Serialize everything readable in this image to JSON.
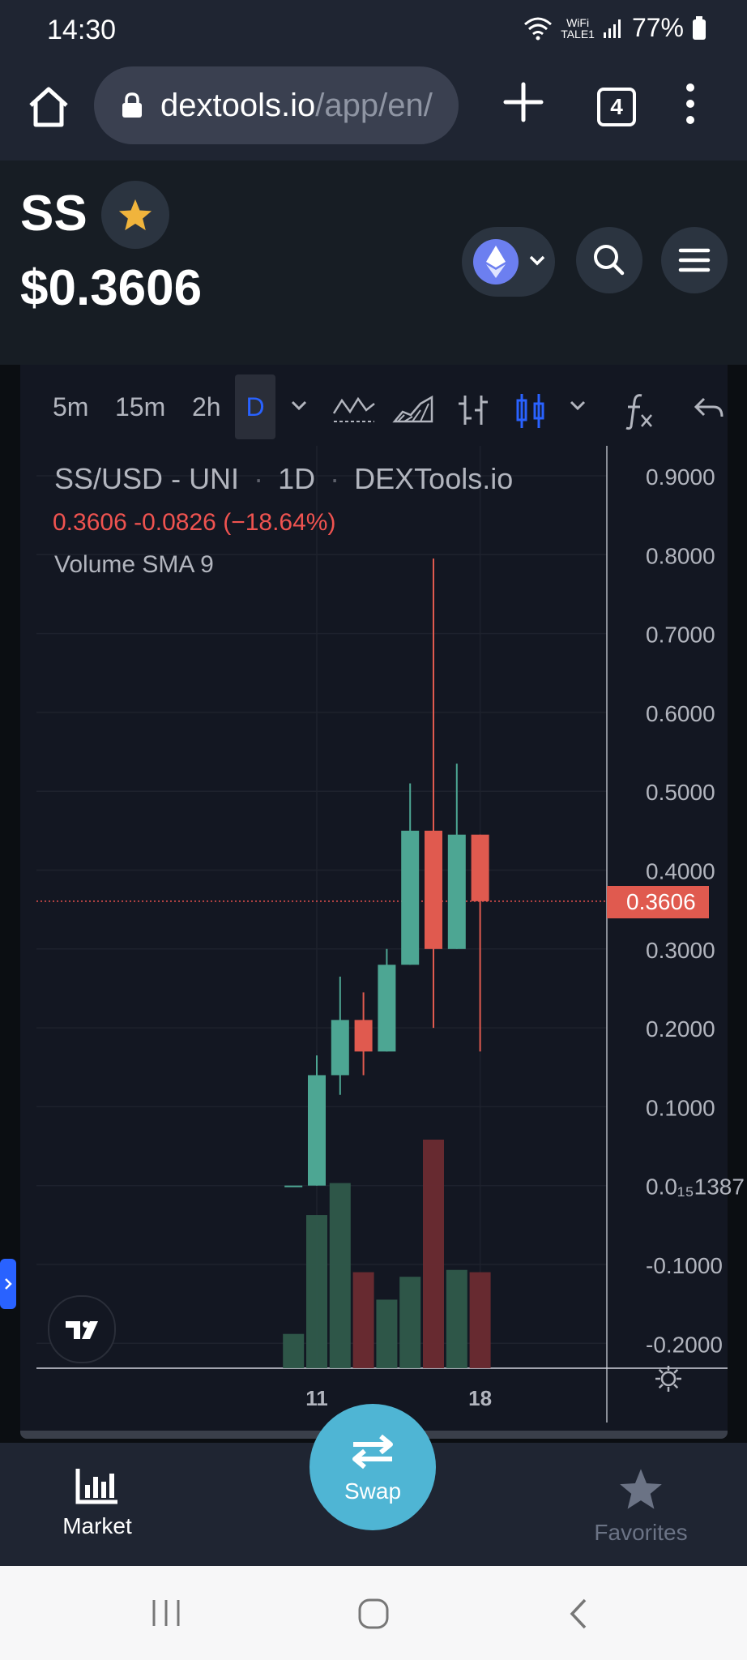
{
  "status_bar": {
    "time": "14:30",
    "wifi_label_top": "WiFi",
    "wifi_label_bottom": "TALE1",
    "battery": "77%"
  },
  "browser": {
    "url_domain": "dextools.io",
    "url_path": "/app/en/",
    "tab_count": "4"
  },
  "token": {
    "symbol": "SS",
    "price": "$0.3606"
  },
  "chart_toolbar": {
    "timeframes": [
      "5m",
      "15m",
      "2h",
      "D"
    ],
    "active_timeframe": "D"
  },
  "chart_legend": {
    "pair": "SS/USD",
    "dex": "UNI",
    "interval": "1D",
    "source": "DEXTools.io",
    "last": "0.3606",
    "change": "-0.0826",
    "change_pct": "(−18.64%)",
    "volume_indicator": "Volume SMA 9"
  },
  "colors": {
    "up": "#4da693",
    "down": "#e05a4f",
    "accent": "#2962ff",
    "swap": "#4fb5d4"
  },
  "chart_data": {
    "type": "candlestick",
    "y_tick_labels": [
      "0.9000",
      "0.8000",
      "0.7000",
      "0.6000",
      "0.5000",
      "0.4000",
      "0.3000",
      "0.2000",
      "0.1000",
      "0.0₁₅1387",
      "-0.1000",
      "-0.2000"
    ],
    "ylim": [
      -0.23,
      0.94
    ],
    "x_tick_labels": [
      {
        "label": "11",
        "day": 11
      },
      {
        "label": "18",
        "day": 18
      }
    ],
    "last_price_label": "0.3606",
    "candles": [
      {
        "day": 10,
        "open": 0.0,
        "high": 0.0,
        "low": 0.0,
        "close": 0.0,
        "volume": 0.15
      },
      {
        "day": 11,
        "open": 0.0,
        "high": 0.165,
        "low": 0.0,
        "close": 0.14,
        "volume": 0.67
      },
      {
        "day": 12,
        "open": 0.14,
        "high": 0.265,
        "low": 0.115,
        "close": 0.21,
        "volume": 0.81
      },
      {
        "day": 13,
        "open": 0.21,
        "high": 0.245,
        "low": 0.14,
        "close": 0.17,
        "volume": 0.42
      },
      {
        "day": 14,
        "open": 0.17,
        "high": 0.3,
        "low": 0.17,
        "close": 0.28,
        "volume": 0.3
      },
      {
        "day": 15,
        "open": 0.28,
        "high": 0.51,
        "low": 0.28,
        "close": 0.45,
        "volume": 0.4
      },
      {
        "day": 16,
        "open": 0.45,
        "high": 0.795,
        "low": 0.2,
        "close": 0.3,
        "volume": 1.0
      },
      {
        "day": 17,
        "open": 0.3,
        "high": 0.535,
        "low": 0.3,
        "close": 0.445,
        "volume": 0.43
      },
      {
        "day": 18,
        "open": 0.445,
        "high": 0.445,
        "low": 0.17,
        "close": 0.3606,
        "volume": 0.42
      }
    ]
  },
  "bottom_nav": {
    "market_label": "Market",
    "swap_label": "Swap",
    "favorites_label": "Favorites"
  }
}
